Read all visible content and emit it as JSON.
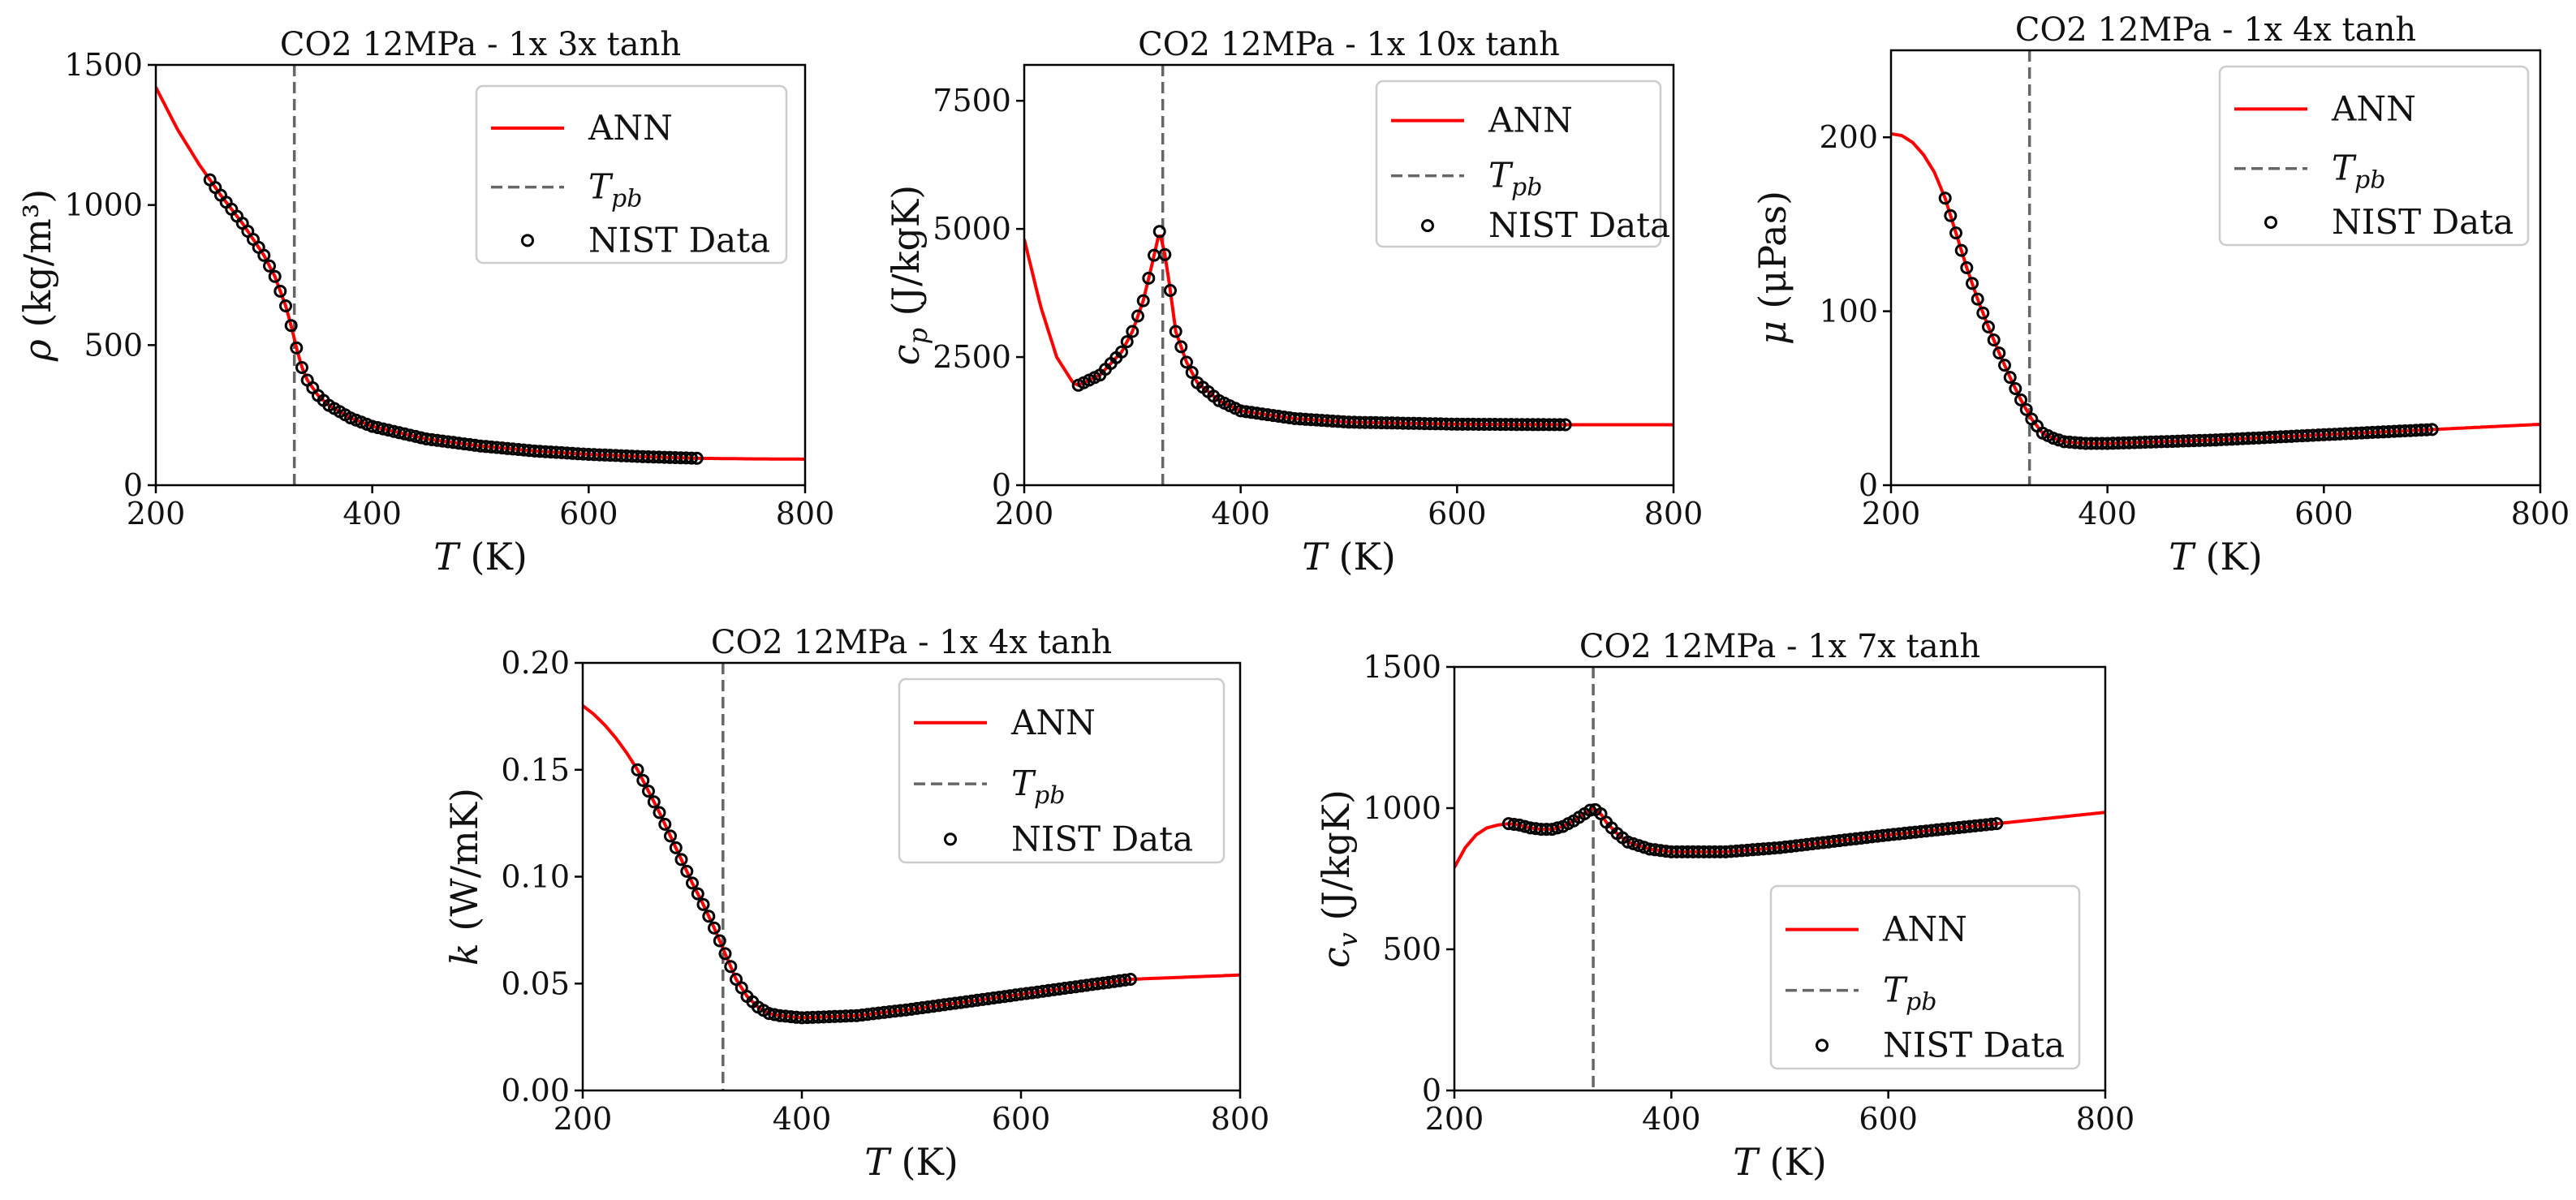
{
  "legend_labels": {
    "ann": "ANN",
    "tpb": "T",
    "tpb_sub": "pb",
    "nist": "NIST Data"
  },
  "colors": {
    "ann": "#ff0000",
    "tpb": "#666666",
    "nist": "#000000"
  },
  "chart_data": [
    {
      "type": "line",
      "title": "CO2 12MPa - 1x 3x tanh",
      "xlabel": "T (K)",
      "ylabel": "ρ (kg/m³)",
      "xlim": [
        200,
        800
      ],
      "ylim": [
        0,
        1500
      ],
      "xticks": [
        200,
        400,
        600,
        800
      ],
      "yticks": [
        0,
        500,
        1000,
        1500
      ],
      "ytick_labels": [
        "0",
        "500",
        "1000",
        "1500"
      ],
      "tpb": 328,
      "legend": "top-right",
      "series": [
        {
          "name": "ANN",
          "x": [
            200,
            220,
            240,
            260,
            280,
            300,
            310,
            320,
            325,
            330,
            335,
            340,
            350,
            360,
            380,
            400,
            450,
            500,
            550,
            600,
            650,
            700,
            750,
            800
          ],
          "y": [
            1420,
            1270,
            1145,
            1035,
            935,
            820,
            745,
            640,
            570,
            490,
            420,
            375,
            320,
            285,
            240,
            210,
            165,
            140,
            122,
            110,
            102,
            96,
            94,
            93
          ]
        },
        {
          "name": "NIST Data",
          "x_range": [
            250,
            700
          ],
          "x_step": 5
        }
      ]
    },
    {
      "type": "line",
      "title": "CO2 12MPa - 1x 10x tanh",
      "xlabel": "T (K)",
      "ylabel": "c_p (J/kgK)",
      "xlim": [
        200,
        800
      ],
      "ylim": [
        0,
        8200
      ],
      "xticks": [
        200,
        400,
        600,
        800
      ],
      "yticks": [
        0,
        2500,
        5000,
        7500
      ],
      "ytick_labels": [
        "0",
        "2500",
        "5000",
        "7500"
      ],
      "tpb": 328,
      "legend": "top-right",
      "series": [
        {
          "name": "ANN",
          "x": [
            200,
            215,
            230,
            245,
            250,
            270,
            290,
            300,
            310,
            318,
            325,
            330,
            335,
            340,
            350,
            360,
            380,
            400,
            450,
            500,
            600,
            700,
            800
          ],
          "y": [
            4800,
            3500,
            2500,
            2000,
            1950,
            2150,
            2600,
            3000,
            3600,
            4300,
            4950,
            4500,
            3800,
            3000,
            2400,
            2000,
            1650,
            1450,
            1300,
            1230,
            1190,
            1180,
            1180
          ]
        },
        {
          "name": "NIST Data",
          "x_range": [
            250,
            700
          ],
          "x_step": 5
        }
      ]
    },
    {
      "type": "line",
      "title": "CO2 12MPa - 1x 4x tanh",
      "xlabel": "T (K)",
      "ylabel": "μ (μPas)",
      "xlim": [
        200,
        800
      ],
      "ylim": [
        0,
        250
      ],
      "xticks": [
        200,
        400,
        600,
        800
      ],
      "yticks": [
        0,
        100,
        200
      ],
      "ytick_labels": [
        "0",
        "100",
        "200"
      ],
      "tpb": 328,
      "legend": "top-right",
      "series": [
        {
          "name": "ANN",
          "x": [
            200,
            210,
            220,
            230,
            240,
            250,
            260,
            270,
            280,
            290,
            300,
            310,
            320,
            330,
            340,
            350,
            360,
            380,
            400,
            500,
            600,
            700,
            800
          ],
          "y": [
            202,
            201,
            197,
            190,
            180,
            165,
            145,
            125,
            107,
            91,
            76,
            62,
            49,
            38,
            30,
            27,
            25,
            24,
            24,
            26,
            29,
            32,
            35
          ]
        },
        {
          "name": "NIST Data",
          "x_range": [
            250,
            700
          ],
          "x_step": 5
        }
      ]
    },
    {
      "type": "line",
      "title": "CO2 12MPa - 1x 4x tanh",
      "xlabel": "T (K)",
      "ylabel": "k (W/mK)",
      "xlim": [
        200,
        800
      ],
      "ylim": [
        0,
        0.2
      ],
      "xticks": [
        200,
        400,
        600,
        800
      ],
      "yticks": [
        0,
        0.05,
        0.1,
        0.15,
        0.2
      ],
      "ytick_labels": [
        "0.00",
        "0.05",
        "0.10",
        "0.15",
        "0.20"
      ],
      "tpb": 328,
      "legend": "top-right",
      "series": [
        {
          "name": "ANN",
          "x": [
            200,
            210,
            220,
            230,
            240,
            250,
            260,
            270,
            280,
            290,
            300,
            310,
            320,
            330,
            340,
            350,
            360,
            370,
            380,
            400,
            450,
            500,
            600,
            700,
            750,
            800
          ],
          "y": [
            0.18,
            0.176,
            0.171,
            0.165,
            0.158,
            0.15,
            0.14,
            0.13,
            0.119,
            0.108,
            0.097,
            0.087,
            0.076,
            0.064,
            0.052,
            0.044,
            0.039,
            0.036,
            0.035,
            0.034,
            0.035,
            0.038,
            0.045,
            0.052,
            0.053,
            0.054
          ]
        },
        {
          "name": "NIST Data",
          "x_range": [
            250,
            700
          ],
          "x_step": 5
        }
      ]
    },
    {
      "type": "line",
      "title": "CO2 12MPa - 1x 7x tanh",
      "xlabel": "T (K)",
      "ylabel": "c_v (J/kgK)",
      "xlim": [
        200,
        800
      ],
      "ylim": [
        0,
        1500
      ],
      "xticks": [
        200,
        400,
        600,
        800
      ],
      "yticks": [
        0,
        500,
        1000,
        1500
      ],
      "ytick_labels": [
        "0",
        "500",
        "1000",
        "1500"
      ],
      "tpb": 328,
      "legend": "lower-right",
      "series": [
        {
          "name": "ANN",
          "x": [
            200,
            210,
            220,
            230,
            240,
            250,
            260,
            270,
            280,
            290,
            300,
            310,
            320,
            328,
            335,
            340,
            350,
            360,
            380,
            400,
            450,
            500,
            600,
            700,
            800
          ],
          "y": [
            790,
            860,
            905,
            930,
            940,
            945,
            940,
            930,
            925,
            925,
            935,
            955,
            980,
            1000,
            980,
            950,
            910,
            880,
            855,
            845,
            845,
            860,
            905,
            945,
            985
          ]
        },
        {
          "name": "NIST Data",
          "x_range": [
            250,
            700
          ],
          "x_step": 5
        }
      ]
    }
  ]
}
